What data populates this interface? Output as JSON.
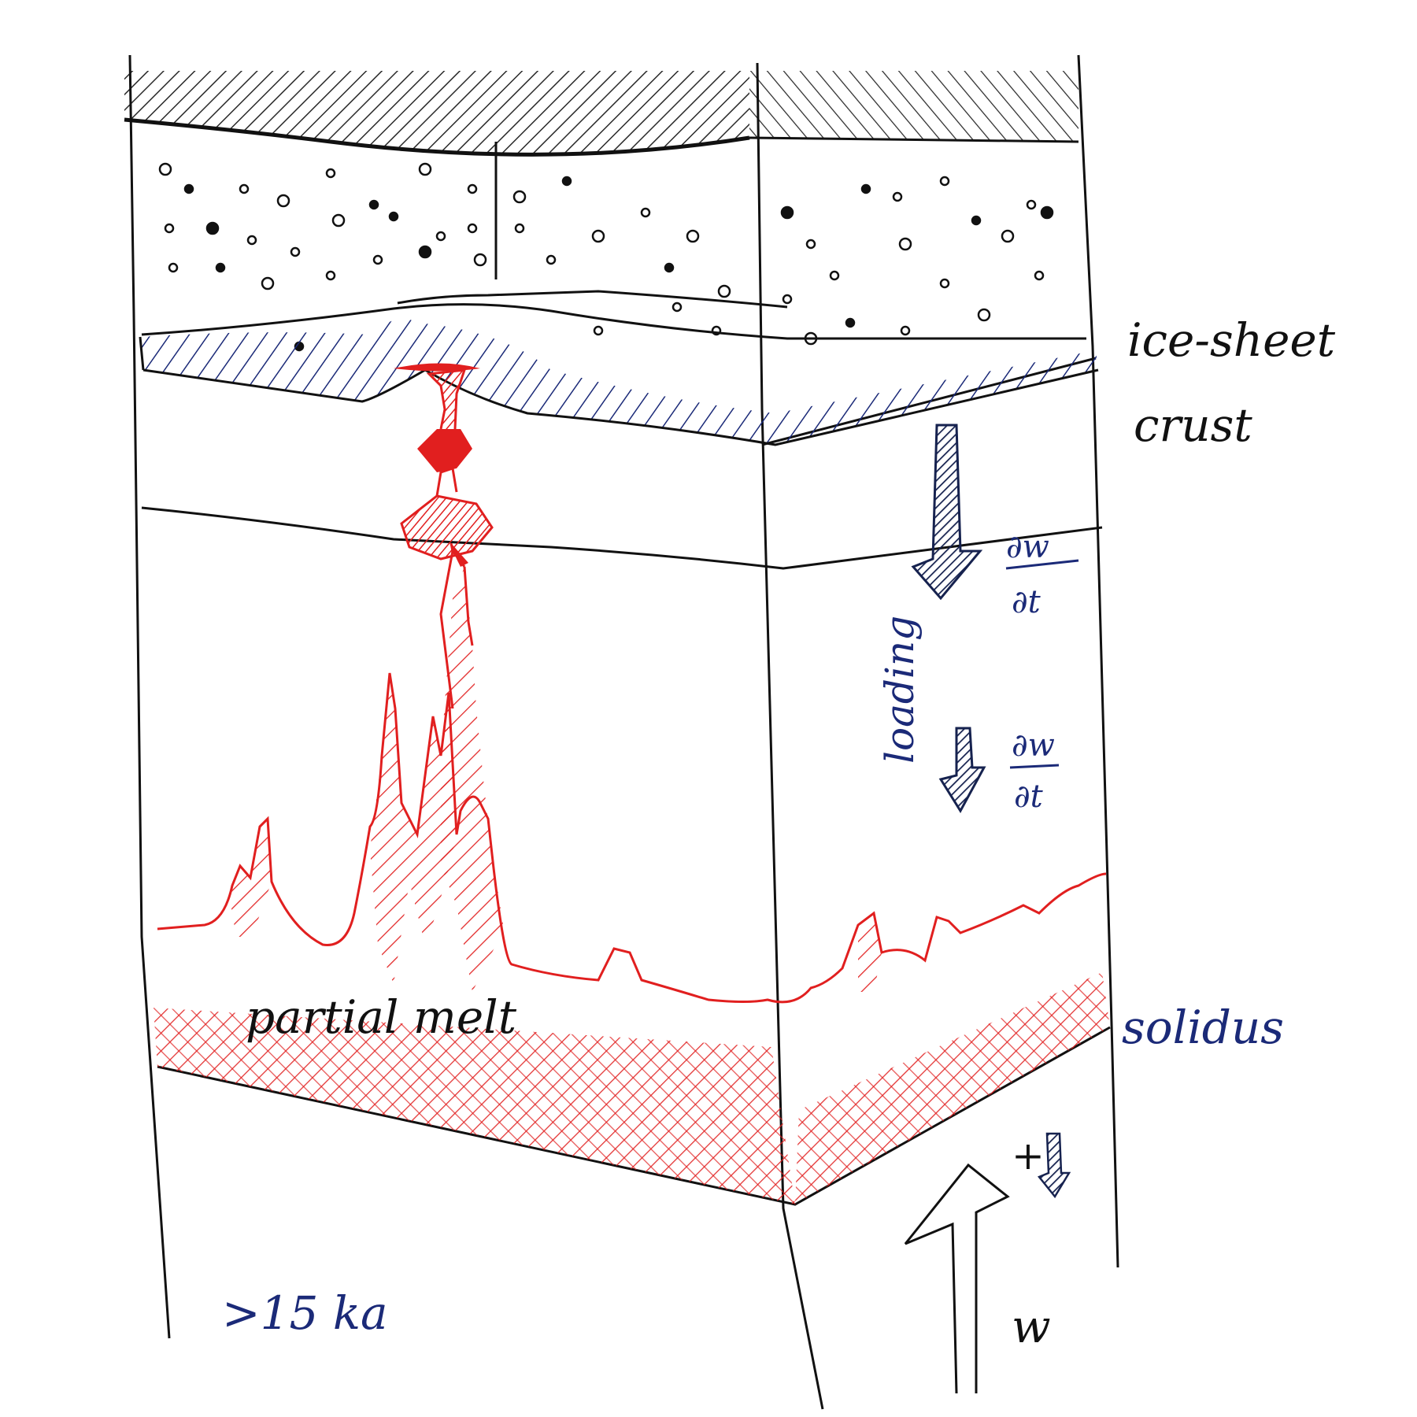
{
  "labels": {
    "ice_sheet": "ice-sheet",
    "crust": "crust",
    "loading": "loading",
    "solidus": "solidus",
    "partial_melt": "partial melt",
    "age": ">15 ka",
    "w": "w",
    "plus": "+",
    "dwdt_upper_num": "∂w",
    "dwdt_upper_den": "∂t",
    "dwdt_lower_num": "∂w",
    "dwdt_lower_den": "∂t"
  },
  "colors": {
    "ink_black": "#111111",
    "ink_blue": "#1b2a78",
    "ink_red": "#e11f1f"
  }
}
